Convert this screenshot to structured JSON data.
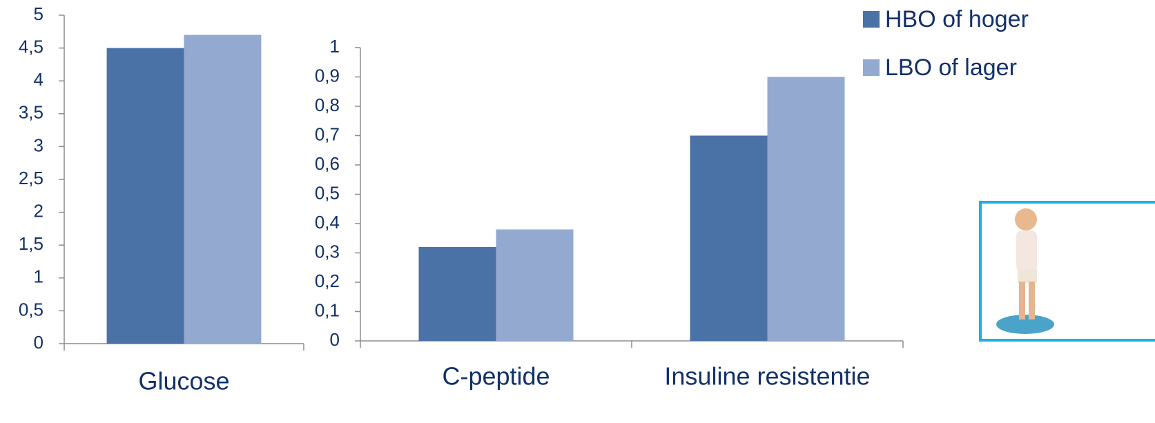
{
  "chart_data": [
    {
      "type": "bar",
      "categories": [
        "Glucose"
      ],
      "series": [
        {
          "name": "HBO of hoger",
          "color": "#4a72a6",
          "values": [
            4.5
          ]
        },
        {
          "name": "LBO of lager",
          "color": "#93a9d0",
          "values": [
            4.7
          ]
        }
      ],
      "ylim": [
        0,
        5
      ],
      "yticks": [
        0,
        {
          "value": 0.5,
          "label": "0,5"
        },
        1,
        {
          "value": 1.5,
          "label": "1,5"
        },
        2,
        {
          "value": 2.5,
          "label": "2,5"
        },
        3,
        {
          "value": 3.5,
          "label": "3,5"
        },
        4,
        {
          "value": 4.5,
          "label": "4,5"
        },
        5
      ]
    },
    {
      "type": "bar",
      "categories": [
        "C-peptide",
        "Insuline resistentie"
      ],
      "series": [
        {
          "color": "#4a72a6",
          "values": [
            0.32,
            0.7
          ]
        },
        {
          "color": "#93a9d0",
          "values": [
            0.38,
            0.9
          ]
        }
      ],
      "ylim": [
        0,
        1
      ],
      "yticks": [
        0,
        {
          "value": 0.1,
          "label": "0,1"
        },
        {
          "value": 0.2,
          "label": "0,2"
        },
        {
          "value": 0.3,
          "label": "0,3"
        },
        {
          "value": 0.4,
          "label": "0,4"
        },
        {
          "value": 0.5,
          "label": "0,5"
        },
        {
          "value": 0.6,
          "label": "0,6"
        },
        {
          "value": 0.7,
          "label": "0,7"
        },
        {
          "value": 0.8,
          "label": "0,8"
        },
        {
          "value": 0.9,
          "label": "0,9"
        },
        1
      ]
    }
  ]
}
